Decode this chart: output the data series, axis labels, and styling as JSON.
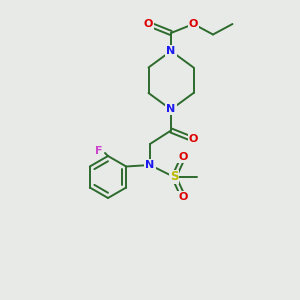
{
  "bg_color": "#e8eae8",
  "bond_color": "#2d6b2d",
  "N_color": "#1a1aee",
  "O_color": "#dd0000",
  "F_color": "#cc44cc",
  "S_color": "#bbbb00",
  "line_width": 1.4,
  "figsize": [
    3.0,
    3.0
  ],
  "dpi": 100,
  "xlim": [
    0,
    10
  ],
  "ylim": [
    0,
    10
  ]
}
